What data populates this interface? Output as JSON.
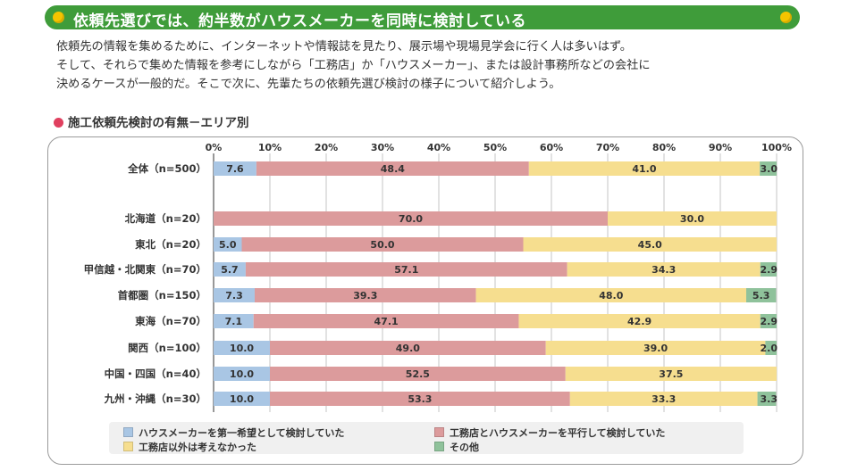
{
  "banner": {
    "title": "依頼先選びでは、約半数がハウスメーカーを同時に検討している"
  },
  "intro": {
    "lines": [
      "依頼先の情報を集めるために、インターネットや情報誌を見たり、展示場や現場見学会に行く人は多いはず。",
      "そして、それらで集めた情報を参考にしながら「工務店」か「ハウスメーカー」、または設計事務所などの会社に",
      "決めるケースが一般的だ。そこで次に、先輩たちの依頼先選び検討の様子について紹介しよう。"
    ]
  },
  "chart_heading": "施工依頼先検討の有無－エリア別",
  "chart_data": {
    "type": "bar",
    "orientation": "horizontal",
    "stacked": true,
    "percent_stacked": true,
    "xlim": [
      0,
      100
    ],
    "x_ticks": [
      "0%",
      "10%",
      "20%",
      "30%",
      "40%",
      "50%",
      "60%",
      "70%",
      "80%",
      "90%",
      "100%"
    ],
    "categories": [
      "全体（n=500）",
      "北海道（n=20）",
      "東北（n=20）",
      "甲信越・北関東（n=70）",
      "首都圏（n=150）",
      "東海（n=70）",
      "関西（n=100）",
      "中国・四国（n=40）",
      "九州・沖縄（n=30）"
    ],
    "series": [
      {
        "name": "ハウスメーカーを第一希望として検討していた",
        "color": "#a9c6e4",
        "values": [
          7.6,
          0,
          5.0,
          5.7,
          7.3,
          7.1,
          10.0,
          10.0,
          10.0
        ],
        "labels": [
          "7.6",
          "",
          "5.0",
          "5.7",
          "7.3",
          "7.1",
          "10.0",
          "10.0",
          "10.0"
        ]
      },
      {
        "name": "工務店とハウスメーカーを平行して検討していた",
        "color": "#dc9b9c",
        "values": [
          48.4,
          70.0,
          50.0,
          57.1,
          39.3,
          47.1,
          49.0,
          52.5,
          53.3
        ],
        "labels": [
          "48.4",
          "70.0",
          "50.0",
          "57.1",
          "39.3",
          "47.1",
          "49.0",
          "52.5",
          "53.3"
        ]
      },
      {
        "name": "工務店以外は考えなかった",
        "color": "#f6de8f",
        "values": [
          41.0,
          30.0,
          45.0,
          34.3,
          48.0,
          42.9,
          39.0,
          37.5,
          33.3
        ],
        "labels": [
          "41.0",
          "30.0",
          "45.0",
          "34.3",
          "48.0",
          "42.9",
          "39.0",
          "37.5",
          "33.3"
        ]
      },
      {
        "name": "その他",
        "color": "#8fc29b",
        "values": [
          3.0,
          0,
          0,
          2.9,
          5.3,
          2.9,
          2.0,
          0,
          3.3
        ],
        "labels": [
          "3.0",
          "",
          "",
          "2.9",
          "5.3",
          "2.9",
          "2.0",
          "",
          "3.3"
        ]
      }
    ],
    "grid": true,
    "legend_position": "bottom"
  }
}
